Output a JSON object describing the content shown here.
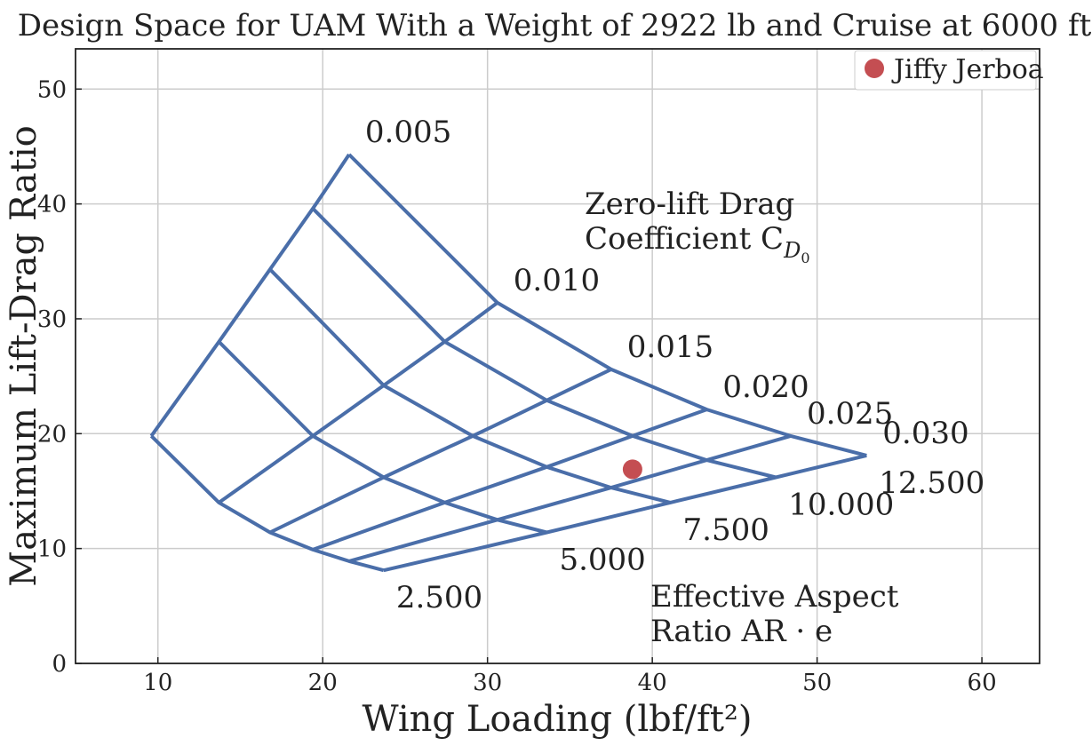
{
  "chart_data": {
    "type": "line",
    "title": "Design Space for UAM With a Weight of 2922 lb and Cruise at 6000 ft",
    "xlabel": "Wing Loading (lbf/ft²)",
    "ylabel": "Maximum Lift-Drag Ratio",
    "xlim": [
      5,
      63.5
    ],
    "ylim": [
      0,
      53.5
    ],
    "xticks": [
      10,
      20,
      30,
      40,
      50,
      60
    ],
    "yticks": [
      0,
      10,
      20,
      30,
      40,
      50
    ],
    "grid": true,
    "legend_position": "top-right",
    "annotations": {
      "cd0_title_line1": "Zero-lift Drag",
      "cd0_title_line2": "Coefficient C",
      "cd0_symbol_sub": "D",
      "cd0_symbol_subsub": "0",
      "ar_title_line1": "Effective Aspect",
      "ar_title_line2": "Ratio AR · e"
    },
    "color": "#4a6ea9",
    "cd0_values": [
      "0.005",
      "0.010",
      "0.015",
      "0.020",
      "0.025",
      "0.030"
    ],
    "ar_values": [
      "2.500",
      "5.000",
      "7.500",
      "10.000",
      "12.500"
    ],
    "cd0_curves": [
      {
        "label": "0.005",
        "points": [
          [
            9.6,
            19.8
          ],
          [
            13.7,
            28.0
          ],
          [
            16.8,
            34.3
          ],
          [
            19.4,
            39.6
          ],
          [
            21.6,
            44.3
          ]
        ]
      },
      {
        "label": "0.010",
        "points": [
          [
            13.7,
            14.0
          ],
          [
            19.4,
            19.8
          ],
          [
            23.7,
            24.2
          ],
          [
            27.4,
            28.0
          ],
          [
            30.6,
            31.4
          ]
        ]
      },
      {
        "label": "0.015",
        "points": [
          [
            16.8,
            11.4
          ],
          [
            23.7,
            16.2
          ],
          [
            29.1,
            19.8
          ],
          [
            33.6,
            22.9
          ],
          [
            37.5,
            25.6
          ]
        ]
      },
      {
        "label": "0.020",
        "points": [
          [
            19.4,
            9.9
          ],
          [
            27.4,
            14.0
          ],
          [
            33.6,
            17.1
          ],
          [
            38.8,
            19.8
          ],
          [
            43.3,
            22.1
          ]
        ]
      },
      {
        "label": "0.025",
        "points": [
          [
            21.6,
            8.9
          ],
          [
            30.6,
            12.5
          ],
          [
            37.5,
            15.3
          ],
          [
            43.3,
            17.7
          ],
          [
            48.4,
            19.8
          ]
        ]
      },
      {
        "label": "0.030",
        "points": [
          [
            23.7,
            8.1
          ],
          [
            33.6,
            11.4
          ],
          [
            41.1,
            14.0
          ],
          [
            47.5,
            16.2
          ],
          [
            53.0,
            18.1
          ]
        ]
      }
    ],
    "ar_curves": [
      {
        "label": "2.500",
        "points": [
          [
            9.6,
            19.8
          ],
          [
            13.7,
            14.0
          ],
          [
            16.8,
            11.4
          ],
          [
            19.4,
            9.9
          ],
          [
            21.6,
            8.9
          ],
          [
            23.7,
            8.1
          ]
        ]
      },
      {
        "label": "5.000",
        "points": [
          [
            13.7,
            28.0
          ],
          [
            19.4,
            19.8
          ],
          [
            23.7,
            16.2
          ],
          [
            27.4,
            14.0
          ],
          [
            30.6,
            12.5
          ],
          [
            33.6,
            11.4
          ]
        ]
      },
      {
        "label": "7.500",
        "points": [
          [
            16.8,
            34.3
          ],
          [
            23.7,
            24.2
          ],
          [
            29.1,
            19.8
          ],
          [
            33.6,
            17.1
          ],
          [
            37.5,
            15.3
          ],
          [
            41.1,
            14.0
          ]
        ]
      },
      {
        "label": "10.000",
        "points": [
          [
            19.4,
            39.6
          ],
          [
            27.4,
            28.0
          ],
          [
            33.6,
            22.9
          ],
          [
            38.8,
            19.8
          ],
          [
            43.3,
            17.7
          ],
          [
            47.5,
            16.2
          ]
        ]
      },
      {
        "label": "12.500",
        "points": [
          [
            21.6,
            44.3
          ],
          [
            30.6,
            31.4
          ],
          [
            37.5,
            25.6
          ],
          [
            43.3,
            22.1
          ],
          [
            48.4,
            19.8
          ],
          [
            53.0,
            18.1
          ]
        ]
      }
    ],
    "point_series": {
      "name": "Jiffy Jerboa",
      "x": 38.8,
      "y": 16.9,
      "color": "#c44e52"
    }
  }
}
